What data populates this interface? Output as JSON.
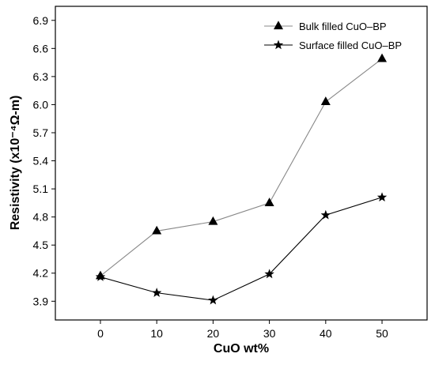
{
  "chart_data": {
    "type": "line",
    "x": [
      0,
      10,
      20,
      30,
      40,
      50
    ],
    "xlabel": "CuO wt%",
    "ylabel": "Resistivity (x10⁻⁴Ω-m)",
    "xlim": [
      -8,
      58
    ],
    "ylim": [
      3.7,
      7.05
    ],
    "xticks": [
      0,
      10,
      20,
      30,
      40,
      50
    ],
    "xtick_labels": [
      "0",
      "10",
      "20",
      "30",
      "40",
      "50"
    ],
    "yticks": [
      3.9,
      4.2,
      4.5,
      4.8,
      5.1,
      5.4,
      5.7,
      6.0,
      6.3,
      6.6,
      6.9
    ],
    "ytick_labels": [
      "3.9",
      "4.2",
      "4.5",
      "4.8",
      "5.1",
      "5.4",
      "5.7",
      "6.0",
      "6.3",
      "6.6",
      "6.9"
    ],
    "grid": false,
    "legend_position": "top-right",
    "series": [
      {
        "name": "Bulk filled CuO–BP",
        "marker": "triangle",
        "line_color": "#888888",
        "values": [
          4.17,
          4.65,
          4.75,
          4.95,
          6.03,
          6.49
        ]
      },
      {
        "name": "Surface filled CuO–BP",
        "marker": "star",
        "line_color": "#000000",
        "values": [
          4.16,
          3.99,
          3.91,
          4.19,
          4.82,
          5.01
        ]
      }
    ]
  }
}
